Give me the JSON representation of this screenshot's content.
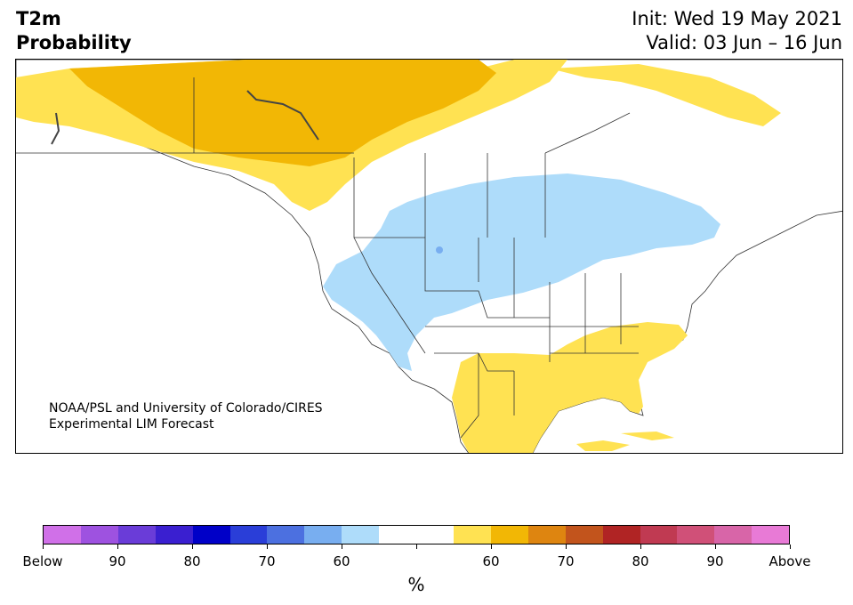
{
  "title": {
    "left_line1": "T2m",
    "left_line2": "Probability",
    "right_line1": "Init: Wed 19 May 2021",
    "right_line2": "Valid: 03 Jun – 16 Jun"
  },
  "credit": {
    "line1": "NOAA/PSL and University of Colorado/CIRES",
    "line2": "Experimental LIM Forecast"
  },
  "colorbar": {
    "colors": [
      "#d070e8",
      "#9e52e0",
      "#6a3cd8",
      "#3a1fd0",
      "#0000c8",
      "#2a3ed8",
      "#4c70e0",
      "#78aef0",
      "#aedcfa",
      "#ffffff",
      "#ffffff",
      "#ffe252",
      "#f2b705",
      "#de8510",
      "#c2541c",
      "#b02424",
      "#c03a52",
      "#d05078",
      "#d865a8",
      "#e87ad6"
    ],
    "labels": [
      "Below",
      "90",
      "80",
      "70",
      "60",
      "",
      "60",
      "70",
      "80",
      "90",
      "Above"
    ],
    "unit": "%"
  },
  "map_colors": {
    "light_yellow": "#ffe252",
    "gold": "#f2b705",
    "light_blue": "#aedcfa",
    "mid_blue": "#78aef0",
    "land": "#ffffff",
    "border": "#333333"
  }
}
